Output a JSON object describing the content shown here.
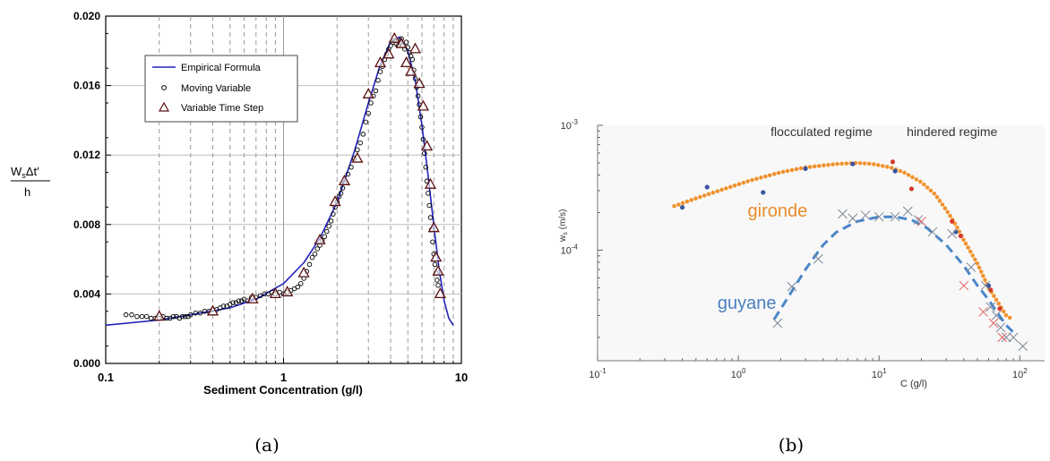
{
  "chart_data": [
    {
      "panel_label": "(a)",
      "type": "line",
      "xscale": "log",
      "xlim": [
        0.1,
        10
      ],
      "ylim": [
        0.0,
        0.02
      ],
      "xlabel": "Sediment Concentration (g/l)",
      "ylabel_top": "W",
      "ylabel_sub": "s",
      "ylabel_rest": "Δt′",
      "ylabel_den": "h",
      "x_ticks": [
        0.1,
        1,
        10
      ],
      "x_tick_labels": [
        "0.1",
        "1",
        "10"
      ],
      "y_ticks": [
        0.0,
        0.004,
        0.008,
        0.012,
        0.016,
        0.02
      ],
      "y_tick_labels": [
        "0.000",
        "0.004",
        "0.008",
        "0.012",
        "0.016",
        "0.020"
      ],
      "grid": true,
      "legend_position": "top-left",
      "series": [
        {
          "name": "Empirical Formula",
          "kind": "line",
          "color": "#2222bb",
          "x": [
            0.1,
            0.2,
            0.3,
            0.5,
            0.7,
            1.0,
            1.3,
            1.6,
            2.0,
            2.5,
            3.0,
            3.5,
            4.0,
            4.5,
            5.0,
            5.5,
            6.0,
            6.5,
            7.0,
            7.5,
            8.0,
            8.5,
            9.0
          ],
          "y": [
            0.0022,
            0.0025,
            0.0028,
            0.0032,
            0.0037,
            0.0046,
            0.0058,
            0.0072,
            0.0093,
            0.0122,
            0.015,
            0.0172,
            0.0185,
            0.0188,
            0.018,
            0.0163,
            0.0137,
            0.0108,
            0.0079,
            0.0054,
            0.0036,
            0.0026,
            0.0022
          ]
        },
        {
          "name": "Moving Variable",
          "kind": "circle",
          "color": "#000000",
          "x": [
            0.13,
            0.14,
            0.15,
            0.16,
            0.17,
            0.18,
            0.19,
            0.2,
            0.21,
            0.22,
            0.23,
            0.24,
            0.25,
            0.26,
            0.27,
            0.28,
            0.29,
            0.3,
            0.32,
            0.34,
            0.36,
            0.38,
            0.4,
            0.42,
            0.44,
            0.46,
            0.48,
            0.5,
            0.52,
            0.54,
            0.56,
            0.58,
            0.6,
            0.63,
            0.66,
            0.7,
            0.74,
            0.78,
            0.82,
            0.86,
            0.9,
            0.95,
            1.0,
            1.05,
            1.1,
            1.15,
            1.2,
            1.25,
            1.3,
            1.35,
            1.4,
            1.45,
            1.5,
            1.55,
            1.6,
            1.65,
            1.7,
            1.75,
            1.8,
            1.85,
            1.9,
            1.95,
            2.0,
            2.05,
            2.1,
            2.15,
            2.2,
            2.3,
            2.4,
            2.5,
            2.6,
            2.7,
            2.8,
            2.9,
            3.0,
            3.1,
            3.2,
            3.3,
            3.4,
            3.5,
            3.6,
            3.7,
            3.8,
            3.9,
            4.0,
            4.1,
            4.2,
            4.3,
            4.4,
            4.5,
            4.6,
            4.7,
            4.8,
            4.9,
            5.0,
            5.1,
            5.2,
            5.3,
            5.4,
            5.5,
            5.6,
            5.7,
            5.8,
            5.9,
            6.0,
            6.1,
            6.2,
            6.3,
            6.4,
            6.5,
            6.6,
            6.7,
            6.8,
            6.9,
            7.0,
            7.1,
            7.2,
            7.3,
            7.4
          ],
          "y": [
            0.0028,
            0.0028,
            0.0027,
            0.0027,
            0.0027,
            0.0026,
            0.0026,
            0.0026,
            0.0027,
            0.0026,
            0.0026,
            0.0027,
            0.0027,
            0.0026,
            0.0027,
            0.0027,
            0.0027,
            0.0028,
            0.0029,
            0.0029,
            0.003,
            0.003,
            0.0031,
            0.0031,
            0.0032,
            0.0033,
            0.0033,
            0.0034,
            0.0035,
            0.0035,
            0.0036,
            0.0036,
            0.0037,
            0.0036,
            0.0038,
            0.0038,
            0.0039,
            0.004,
            0.004,
            0.0041,
            0.004,
            0.0041,
            0.004,
            0.0041,
            0.0042,
            0.0043,
            0.0044,
            0.0046,
            0.0049,
            0.0053,
            0.0057,
            0.0061,
            0.0063,
            0.0066,
            0.0068,
            0.0071,
            0.0073,
            0.0076,
            0.0079,
            0.0082,
            0.0086,
            0.009,
            0.0093,
            0.0096,
            0.0098,
            0.0101,
            0.0104,
            0.0109,
            0.0113,
            0.0118,
            0.0123,
            0.0127,
            0.0132,
            0.0139,
            0.0144,
            0.015,
            0.0154,
            0.0157,
            0.0163,
            0.0168,
            0.0171,
            0.0175,
            0.0178,
            0.0181,
            0.0183,
            0.0185,
            0.0186,
            0.0184,
            0.0183,
            0.0185,
            0.0187,
            0.0183,
            0.0181,
            0.0185,
            0.0182,
            0.0179,
            0.0177,
            0.0175,
            0.0169,
            0.0164,
            0.0159,
            0.0154,
            0.0149,
            0.0142,
            0.0136,
            0.0129,
            0.0121,
            0.0113,
            0.0105,
            0.0098,
            0.0091,
            0.0084,
            0.0077,
            0.007,
            0.0063,
            0.0057,
            0.0052,
            0.0048,
            0.0045
          ]
        },
        {
          "name": "Variable Time Step",
          "kind": "triangle",
          "color": "#5a1010",
          "x": [
            0.2,
            0.4,
            0.67,
            0.9,
            1.05,
            1.3,
            1.6,
            1.95,
            2.2,
            2.6,
            3.0,
            3.5,
            3.9,
            4.2,
            4.6,
            4.9,
            5.2,
            5.5,
            5.8,
            6.1,
            6.4,
            6.7,
            7.0,
            7.2,
            7.4,
            7.6
          ],
          "y": [
            0.0027,
            0.003,
            0.0037,
            0.004,
            0.0041,
            0.0052,
            0.0071,
            0.0093,
            0.0105,
            0.0118,
            0.0155,
            0.0173,
            0.0178,
            0.0187,
            0.0184,
            0.0173,
            0.0168,
            0.0181,
            0.0161,
            0.0148,
            0.0125,
            0.0103,
            0.0078,
            0.0061,
            0.0053,
            0.004
          ]
        }
      ]
    },
    {
      "panel_label": "(b)",
      "type": "scatter",
      "xscale": "log",
      "yscale": "log",
      "xlim": [
        0.1,
        150
      ],
      "ylim": [
        1.3e-05,
        0.001
      ],
      "xlabel": "C (g/l)",
      "ylabel": "w",
      "ylabel_sub": "s",
      "ylabel_unit": "(m/s)",
      "x_tick_base": "10",
      "x_tick_exponents": [
        "-1",
        "0",
        "1",
        "2"
      ],
      "x_ticks": [
        0.1,
        1,
        10,
        100
      ],
      "y_tick_base": "10",
      "y_tick_exponents": [
        "-3",
        "-4"
      ],
      "y_ticks": [
        0.001,
        0.0001
      ],
      "grid": false,
      "annotations": [
        {
          "text": "flocculated regime",
          "x": 3.9,
          "y": 0.00082
        },
        {
          "text": "hindered regime",
          "x": 33,
          "y": 0.00082
        },
        {
          "text": "gironde",
          "x": 1.9,
          "y": 0.000185,
          "color": "#e88d2c"
        },
        {
          "text": "guyane",
          "x": 1.15,
          "y": 3.4e-05,
          "color": "#4a7fc0"
        }
      ],
      "series": [
        {
          "name": "gironde",
          "kind": "fit-dotted",
          "color": "#f0922e",
          "x": [
            0.35,
            0.5,
            0.8,
            1.2,
            2,
            3,
            5,
            7,
            9,
            12,
            15,
            20,
            25,
            30,
            35,
            40,
            50,
            60,
            70,
            80,
            88
          ],
          "y": [
            0.000225,
            0.00026,
            0.00031,
            0.00036,
            0.00042,
            0.00046,
            0.00049,
            0.0005,
            0.00049,
            0.00046,
            0.00042,
            0.00035,
            0.00028,
            0.00021,
            0.00016,
            0.00012,
            7.8e-05,
            5e-05,
            3.8e-05,
            3e-05,
            2.8e-05
          ]
        },
        {
          "name": "guyane",
          "kind": "fit-dashed",
          "color": "#4a86c8",
          "x": [
            1.8,
            2.2,
            3,
            4,
            5,
            7,
            10,
            13,
            17,
            22,
            30,
            40,
            50,
            60,
            70,
            80,
            90
          ],
          "y": [
            2.8e-05,
            4e-05,
            7e-05,
            0.00011,
            0.00014,
            0.00017,
            0.000185,
            0.000185,
            0.000175,
            0.00015,
            0.00011,
            7.5e-05,
            5.2e-05,
            4e-05,
            3.1e-05,
            2.5e-05,
            2.2e-05
          ]
        },
        {
          "name": "gironde measurements",
          "kind": "dot",
          "color": "#3a55a0",
          "x": [
            0.4,
            0.6,
            1.5,
            3,
            6.5,
            13,
            35,
            60
          ],
          "y": [
            0.00022,
            0.00032,
            0.00029,
            0.00045,
            0.00049,
            0.00043,
            0.00014,
            5.2e-05
          ]
        },
        {
          "name": "gironde measurements (red)",
          "kind": "dot",
          "color": "#d43a2a",
          "x": [
            12.5,
            17,
            33,
            38,
            62,
            72
          ],
          "y": [
            0.00051,
            0.00031,
            0.00017,
            0.00013,
            4.8e-05,
            3.4e-05
          ]
        },
        {
          "name": "guyane measurements",
          "kind": "cross",
          "color": "#7a8898",
          "x": [
            1.9,
            2.4,
            3.7,
            5.5,
            6.5,
            8,
            10,
            13,
            16,
            19,
            24,
            33,
            45,
            57,
            62,
            68,
            73,
            80,
            90,
            105
          ],
          "y": [
            2.6e-05,
            5.1e-05,
            8.5e-05,
            0.000195,
            0.00018,
            0.00019,
            0.000185,
            0.000185,
            0.000205,
            0.000175,
            0.00014,
            0.000135,
            7.3e-05,
            5.2e-05,
            3.5e-05,
            3e-05,
            2.4e-05,
            2e-05,
            2e-05,
            1.7e-05
          ]
        },
        {
          "name": "guyane measurements (red)",
          "kind": "cross",
          "color": "#e06060",
          "x": [
            20,
            40,
            55,
            65,
            75
          ],
          "y": [
            0.00017,
            5.2e-05,
            3.2e-05,
            2.6e-05,
            2e-05
          ]
        }
      ]
    }
  ],
  "legend_a": [
    "Empirical Formula",
    "Moving Variable",
    "Variable Time Step"
  ],
  "captions": {
    "a": "(a)",
    "b": "(b)"
  }
}
